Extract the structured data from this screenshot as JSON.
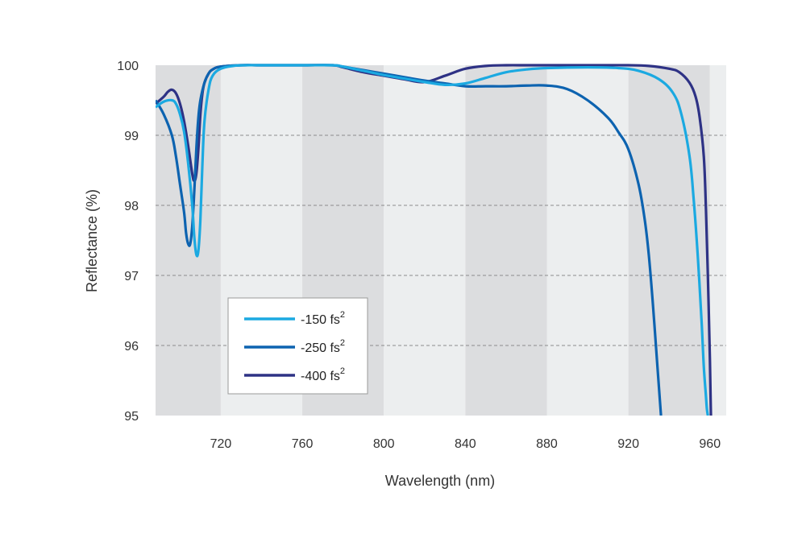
{
  "chart_data": {
    "type": "line",
    "xlabel": "Wavelength (nm)",
    "ylabel": "Reflectance (%)",
    "xlim": [
      688,
      968
    ],
    "ylim": [
      95,
      100
    ],
    "xticks": [
      720,
      760,
      800,
      840,
      880,
      920,
      960
    ],
    "yticks": [
      95,
      96,
      97,
      98,
      99,
      100
    ],
    "grid": "horizontal-dashed",
    "band_colors": {
      "dark": "#dcdddf",
      "light": "#eceeef"
    },
    "bands": [
      [
        688,
        720,
        "dark"
      ],
      [
        720,
        760,
        "light"
      ],
      [
        760,
        800,
        "dark"
      ],
      [
        800,
        840,
        "light"
      ],
      [
        840,
        880,
        "dark"
      ],
      [
        880,
        920,
        "light"
      ],
      [
        920,
        960,
        "dark"
      ],
      [
        960,
        968,
        "light"
      ]
    ],
    "legend_position": "bottom-left",
    "series": [
      {
        "name": "-150 fs",
        "superscript": "2",
        "color": "#1ba9e1",
        "x": [
          688,
          692,
          696,
          698,
          700,
          702,
          704,
          706,
          707,
          708,
          709,
          710,
          711,
          712,
          714,
          716,
          720,
          726,
          732,
          740,
          760,
          775,
          780,
          790,
          800,
          810,
          820,
          830,
          840,
          850,
          860,
          870,
          880,
          900,
          915,
          925,
          935,
          942,
          946,
          950,
          952,
          954,
          956,
          957,
          958,
          958.5,
          959
        ],
        "y": [
          99.4,
          99.48,
          99.5,
          99.45,
          99.3,
          99.05,
          98.6,
          98.0,
          97.55,
          97.3,
          97.35,
          97.8,
          98.6,
          99.2,
          99.65,
          99.85,
          99.95,
          99.99,
          100.0,
          100.0,
          100.0,
          100.0,
          99.98,
          99.92,
          99.86,
          99.81,
          99.76,
          99.72,
          99.74,
          99.82,
          99.9,
          99.94,
          99.96,
          99.97,
          99.96,
          99.92,
          99.8,
          99.6,
          99.3,
          98.7,
          98.1,
          97.3,
          96.3,
          95.7,
          95.3,
          95.1,
          95.0
        ]
      },
      {
        "name": "-250 fs",
        "superscript": "2",
        "color": "#0d63b0",
        "x": [
          688,
          692,
          696,
          698,
          700,
          702,
          703,
          704,
          705,
          706,
          707,
          708,
          709,
          710,
          712,
          714,
          716,
          720,
          730,
          740,
          760,
          775,
          780,
          790,
          800,
          810,
          820,
          830,
          840,
          850,
          860,
          870,
          880,
          890,
          900,
          910,
          915,
          920,
          925,
          928,
          930,
          932,
          934,
          936
        ],
        "y": [
          99.5,
          99.3,
          99.0,
          98.7,
          98.3,
          97.9,
          97.6,
          97.45,
          97.45,
          97.7,
          98.2,
          98.8,
          99.25,
          99.5,
          99.75,
          99.88,
          99.94,
          99.98,
          100.0,
          100.0,
          100.0,
          100.0,
          99.98,
          99.93,
          99.88,
          99.83,
          99.78,
          99.74,
          99.7,
          99.7,
          99.7,
          99.71,
          99.71,
          99.66,
          99.5,
          99.25,
          99.05,
          98.8,
          98.3,
          97.8,
          97.3,
          96.6,
          95.8,
          95.0
        ]
      },
      {
        "name": "-400 fs",
        "superscript": "2",
        "color": "#2e3285",
        "x": [
          688,
          692,
          694,
          696,
          698,
          700,
          702,
          704,
          706,
          707,
          708,
          709,
          710,
          711,
          712,
          714,
          716,
          720,
          730,
          740,
          760,
          775,
          780,
          790,
          800,
          810,
          820,
          830,
          840,
          850,
          860,
          870,
          880,
          900,
          920,
          930,
          940,
          945,
          950,
          953,
          955,
          957,
          958,
          959,
          960,
          960.5
        ],
        "y": [
          99.45,
          99.55,
          99.62,
          99.65,
          99.6,
          99.45,
          99.2,
          98.85,
          98.45,
          98.35,
          98.45,
          98.8,
          99.3,
          99.6,
          99.75,
          99.88,
          99.94,
          99.98,
          100.0,
          100.0,
          100.0,
          100.0,
          99.97,
          99.9,
          99.85,
          99.8,
          99.76,
          99.85,
          99.95,
          99.99,
          100.0,
          100.0,
          100.0,
          100.0,
          100.0,
          99.99,
          99.95,
          99.9,
          99.75,
          99.55,
          99.25,
          98.7,
          98.0,
          97.0,
          95.8,
          95.0
        ]
      }
    ]
  }
}
